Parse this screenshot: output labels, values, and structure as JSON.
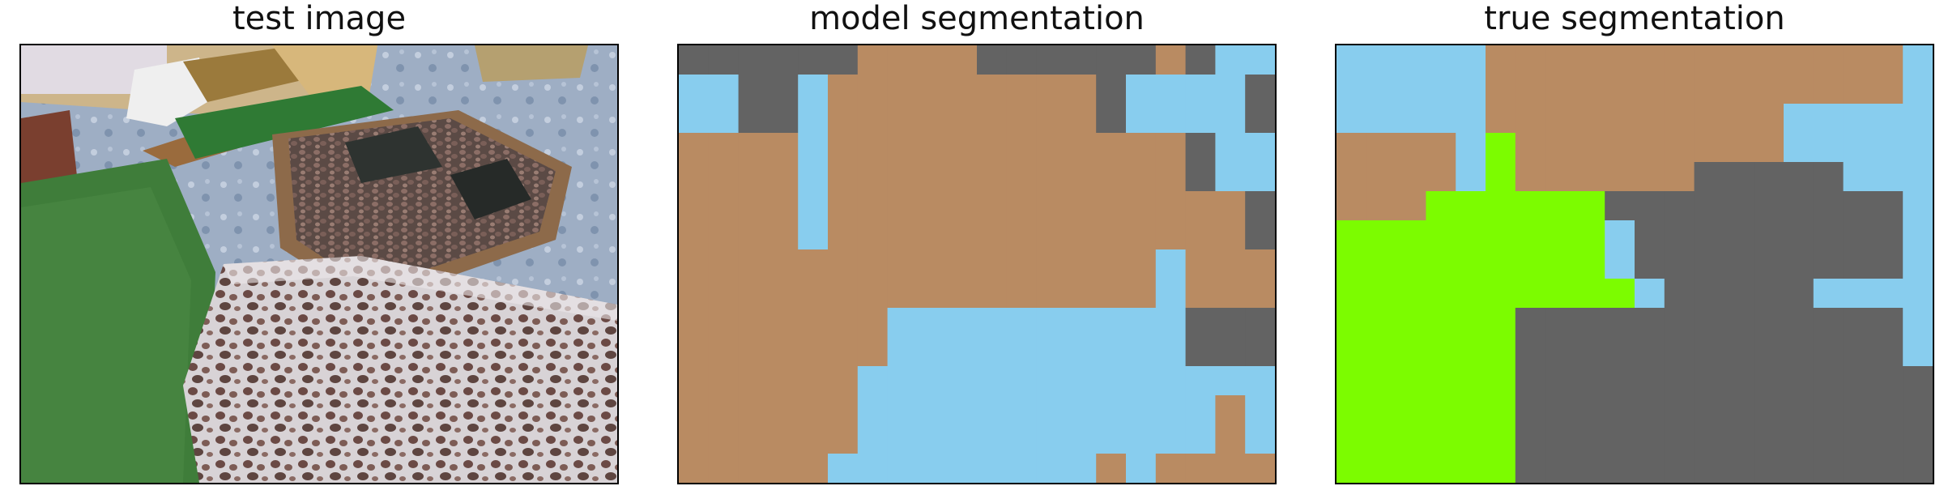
{
  "panels": {
    "test_image": {
      "title": "test image"
    },
    "model_segmentation": {
      "title": "model segmentation"
    },
    "true_segmentation": {
      "title": "true segmentation"
    }
  },
  "colors": {
    "B": "#b98b62",
    "D": "#636363",
    "S": "#88cdee",
    "G": "#7cfc00"
  },
  "segmentation": {
    "cols": 20,
    "rows": 15,
    "model": [
      "DDDDDDBBBBDDDDDDBDSS",
      "SSDDSBBBBBBBBBDSSSSD",
      "SSDDSBBBBBBBBBDSSSSD",
      "BBBBSBBBBBBBBBBBBDSS",
      "BBBBSBBBBBBBBBBBBDSS",
      "BBBBSBBBBBBBBBBBBBBD",
      "BBBBSBBBBBBBBBBBBBBD",
      "BBBBBBBBBBBBBBBBSBBB",
      "BBBBBBBBBBBBBBBBSBBB",
      "BBBBBBBSSSSSSSSSSDDD",
      "BBBBBBBSSSSSSSSSSDDD",
      "BBBBBBSSSSSSSSSSSSSS",
      "BBBBBBSSSSSSSSSSSSBS",
      "BBBBBBSSSSSSSSSSSSBS",
      "BBBBBSSSSSSSSSBSBBBB"
    ],
    "truth": [
      "SSSSSBBBBBBBBBBBBBBS",
      "SSSSSBBBBBBBBBBBBBBS",
      "SSSSSBBBBBBBBBBSSSSS",
      "BBBBSGBBBBBBBBBSSSSS",
      "BBBBSGBBBBBBDDDDDSSS",
      "BBBGGGGGGDDDDDDDDDDS",
      "GGGGGGGGGSDDDDDDDDDS",
      "GGGGGGGGGSDDDDDDDDDS",
      "GGGGGGGGGGSDDDDDSSSS",
      "GGGGGGDDDDDDDDDDDDDS",
      "GGGGGGDDDDDDDDDDDDDS",
      "GGGGGGDDDDDDDDDDDDDD",
      "GGGGGGDDDDDDDDDDDDDD",
      "GGGGGGDDDDDDDDDDDDDD",
      "GGGGGGDDDDDDDDDDDDDD"
    ]
  }
}
